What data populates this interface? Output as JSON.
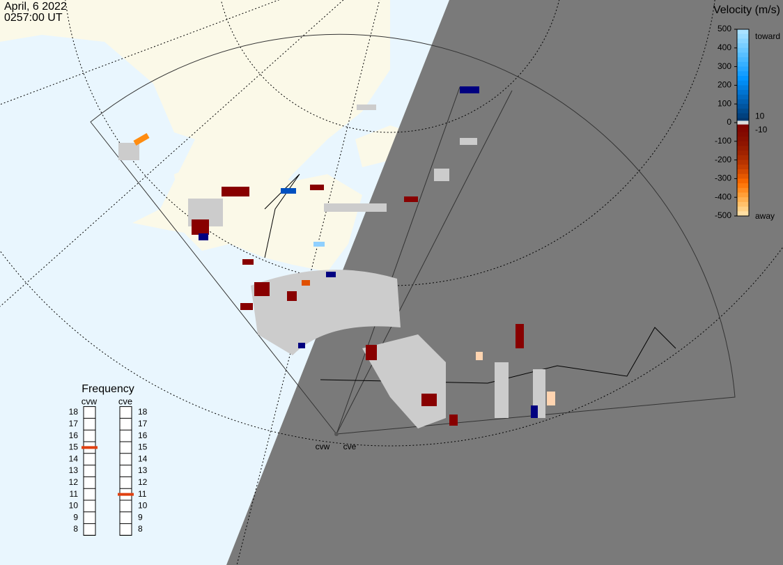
{
  "header": {
    "date": "April, 6 2022",
    "time": "0257:00 UT"
  },
  "velocity_scale": {
    "title": "Velocity (m/s)",
    "ticks": [
      500,
      400,
      300,
      200,
      100,
      0,
      -100,
      -200,
      -300,
      -400,
      -500
    ],
    "toward_label": "toward",
    "away_label": "away",
    "inner_ticks": [
      10,
      -10
    ]
  },
  "frequency": {
    "title": "Frequency",
    "ticks": [
      18,
      17,
      16,
      15,
      14,
      13,
      12,
      11,
      10,
      9,
      8
    ],
    "radars": [
      {
        "name": "cvw",
        "value": 15
      },
      {
        "name": "cve",
        "value": 11
      }
    ]
  },
  "radar_sites": [
    "cvw",
    "cve"
  ]
}
